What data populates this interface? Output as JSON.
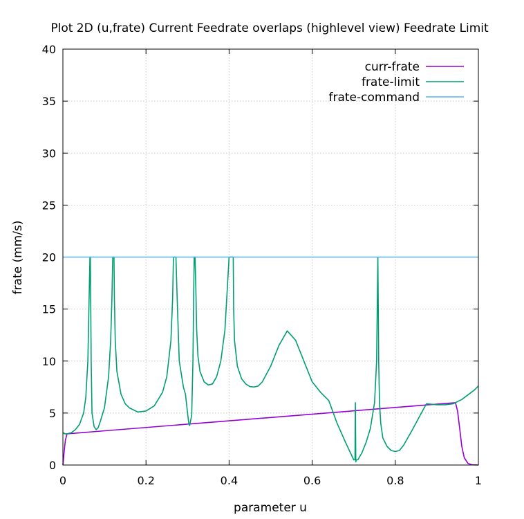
{
  "chart_data": {
    "type": "line",
    "title": "Plot 2D (u,frate) Current Feedrate overlaps (highlevel view) Feedrate Limit",
    "xlabel": "parameter u",
    "ylabel": "frate (mm/s)",
    "xlim": [
      0,
      1
    ],
    "ylim": [
      0,
      40
    ],
    "xticks": [
      0,
      0.2,
      0.4,
      0.6,
      0.8,
      1
    ],
    "xtick_labels": [
      "0",
      "0.2",
      "0.4",
      "0.6",
      "0.8",
      "1"
    ],
    "yticks": [
      0,
      5,
      10,
      15,
      20,
      25,
      30,
      35,
      40
    ],
    "ytick_labels": [
      "0",
      "5",
      "10",
      "15",
      "20",
      "25",
      "30",
      "35",
      "40"
    ],
    "grid": true,
    "legend_position": "top-right",
    "series": [
      {
        "name": "curr-frate",
        "color": "#9400d3",
        "x": [
          0.0,
          0.003,
          0.006,
          0.01,
          0.945,
          0.95,
          0.955,
          0.96,
          0.966,
          0.975,
          0.985,
          1.0
        ],
        "y": [
          0.0,
          1.3,
          2.4,
          3.0,
          6.0,
          5.2,
          3.5,
          1.8,
          0.7,
          0.15,
          0.02,
          0.0
        ]
      },
      {
        "name": "frate-limit",
        "color": "#009e73",
        "x": [
          0.0,
          0.005,
          0.01,
          0.02,
          0.03,
          0.04,
          0.05,
          0.055,
          0.06,
          0.063,
          0.065,
          0.066,
          0.068,
          0.07,
          0.075,
          0.08,
          0.085,
          0.09,
          0.1,
          0.11,
          0.115,
          0.118,
          0.12,
          0.121,
          0.122,
          0.123,
          0.124,
          0.126,
          0.13,
          0.14,
          0.15,
          0.16,
          0.18,
          0.2,
          0.22,
          0.24,
          0.25,
          0.26,
          0.264,
          0.266,
          0.268,
          0.27,
          0.272,
          0.275,
          0.28,
          0.29,
          0.295,
          0.3,
          0.303,
          0.305,
          0.31,
          0.313,
          0.315,
          0.316,
          0.318,
          0.32,
          0.322,
          0.325,
          0.33,
          0.34,
          0.35,
          0.36,
          0.37,
          0.38,
          0.39,
          0.4,
          0.403,
          0.406,
          0.408,
          0.41,
          0.411,
          0.413,
          0.42,
          0.43,
          0.44,
          0.45,
          0.46,
          0.47,
          0.48,
          0.5,
          0.52,
          0.54,
          0.56,
          0.58,
          0.6,
          0.62,
          0.64,
          0.66,
          0.68,
          0.7,
          0.703,
          0.704,
          0.705,
          0.706,
          0.707,
          0.71,
          0.72,
          0.73,
          0.74,
          0.75,
          0.755,
          0.758,
          0.76,
          0.762,
          0.765,
          0.77,
          0.78,
          0.79,
          0.8,
          0.81,
          0.82,
          0.84,
          0.86,
          0.875,
          0.9,
          0.92,
          0.94,
          0.95,
          0.96,
          0.97,
          0.98,
          0.99,
          1.0
        ],
        "y": [
          3.1,
          3.0,
          3.0,
          3.1,
          3.4,
          3.9,
          5.0,
          6.5,
          10.0,
          16.0,
          20.0,
          20.0,
          10.0,
          5.0,
          3.7,
          3.4,
          3.6,
          4.2,
          5.5,
          8.5,
          12.0,
          16.0,
          20.0,
          20.0,
          20.0,
          20.0,
          16.0,
          12.0,
          9.0,
          6.8,
          5.9,
          5.5,
          5.1,
          5.2,
          5.7,
          7.0,
          8.5,
          12.0,
          16.0,
          20.0,
          20.0,
          20.0,
          20.0,
          16.0,
          10.0,
          7.5,
          6.8,
          5.0,
          4.0,
          3.8,
          4.8,
          10.0,
          17.0,
          20.0,
          20.0,
          17.0,
          13.0,
          10.5,
          9.0,
          8.0,
          7.7,
          7.8,
          8.5,
          10.0,
          13.0,
          20.0,
          20.0,
          20.0,
          20.0,
          20.0,
          15.0,
          12.0,
          9.5,
          8.3,
          7.8,
          7.55,
          7.5,
          7.6,
          8.0,
          9.5,
          11.5,
          12.9,
          12.0,
          10.0,
          8.0,
          7.0,
          6.2,
          4.0,
          2.2,
          0.5,
          0.5,
          6.0,
          0.3,
          0.5,
          0.5,
          0.5,
          1.2,
          2.2,
          3.5,
          6.0,
          10.0,
          20.0,
          10.0,
          6.0,
          4.0,
          2.6,
          1.8,
          1.4,
          1.3,
          1.4,
          1.9,
          3.3,
          4.8,
          5.9,
          5.8,
          5.8,
          5.9,
          6.1,
          6.3,
          6.6,
          6.9,
          7.2,
          7.6
        ]
      },
      {
        "name": "frate-command",
        "color": "#56b4e9",
        "x": [
          0,
          1
        ],
        "y": [
          20,
          20
        ]
      }
    ]
  }
}
